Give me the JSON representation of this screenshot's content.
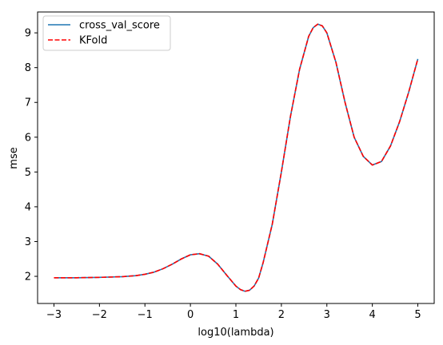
{
  "chart_data": {
    "type": "line",
    "xlabel": "log10(lambda)",
    "ylabel": "mse",
    "xlim": [
      -3.36,
      5.36
    ],
    "ylim": [
      1.22,
      9.6
    ],
    "xticks": [
      -3,
      -2,
      -1,
      0,
      1,
      2,
      3,
      4,
      5
    ],
    "yticks": [
      2,
      3,
      4,
      5,
      6,
      7,
      8,
      9
    ],
    "grid": false,
    "legend_position": "top-left",
    "series": [
      {
        "name": "cross_val_score",
        "color": "#1f77b4",
        "style": "solid",
        "x": [
          -3,
          -2.5,
          -2,
          -1.5,
          -1.2,
          -1,
          -0.8,
          -0.6,
          -0.4,
          -0.2,
          0,
          0.2,
          0.4,
          0.6,
          0.8,
          1.0,
          1.1,
          1.2,
          1.3,
          1.4,
          1.5,
          1.6,
          1.8,
          2.0,
          2.2,
          2.4,
          2.6,
          2.7,
          2.8,
          2.9,
          3.0,
          3.2,
          3.4,
          3.6,
          3.8,
          4.0,
          4.2,
          4.4,
          4.6,
          4.8,
          5.0
        ],
        "y": [
          1.96,
          1.96,
          1.97,
          1.99,
          2.02,
          2.06,
          2.12,
          2.22,
          2.35,
          2.5,
          2.62,
          2.65,
          2.58,
          2.35,
          2.03,
          1.72,
          1.62,
          1.57,
          1.6,
          1.72,
          1.95,
          2.4,
          3.5,
          5.0,
          6.6,
          7.95,
          8.9,
          9.15,
          9.25,
          9.2,
          9.0,
          8.15,
          7.0,
          6.0,
          5.45,
          5.2,
          5.3,
          5.75,
          6.45,
          7.3,
          8.25
        ]
      },
      {
        "name": "KFold",
        "color": "#ff0000",
        "style": "dashed",
        "x": [
          -3,
          -2.5,
          -2,
          -1.5,
          -1.2,
          -1,
          -0.8,
          -0.6,
          -0.4,
          -0.2,
          0,
          0.2,
          0.4,
          0.6,
          0.8,
          1.0,
          1.1,
          1.2,
          1.3,
          1.4,
          1.5,
          1.6,
          1.8,
          2.0,
          2.2,
          2.4,
          2.6,
          2.7,
          2.8,
          2.9,
          3.0,
          3.2,
          3.4,
          3.6,
          3.8,
          4.0,
          4.2,
          4.4,
          4.6,
          4.8,
          5.0
        ],
        "y": [
          1.96,
          1.96,
          1.97,
          1.99,
          2.02,
          2.06,
          2.12,
          2.22,
          2.35,
          2.5,
          2.62,
          2.65,
          2.58,
          2.35,
          2.03,
          1.72,
          1.62,
          1.57,
          1.6,
          1.72,
          1.95,
          2.4,
          3.5,
          5.0,
          6.6,
          7.95,
          8.9,
          9.15,
          9.25,
          9.2,
          9.0,
          8.15,
          7.0,
          6.0,
          5.45,
          5.2,
          5.3,
          5.75,
          6.45,
          7.3,
          8.25
        ]
      }
    ]
  }
}
